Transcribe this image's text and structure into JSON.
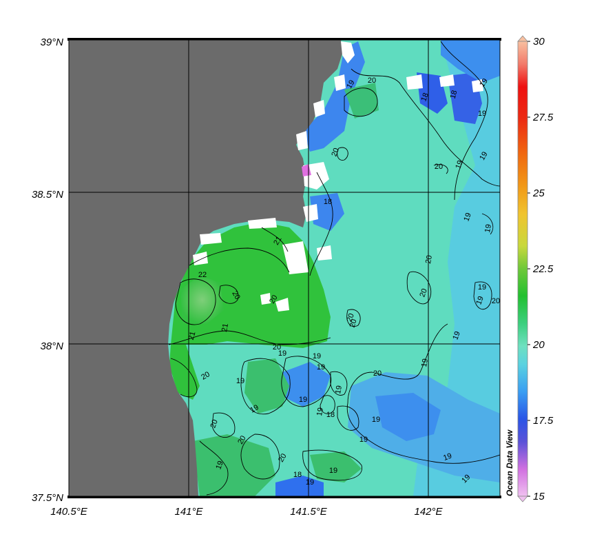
{
  "map": {
    "lat_labels": [
      "39°N",
      "38.5°N",
      "38°N",
      "37.5°N"
    ],
    "lon_labels": [
      "140.5°E",
      "141°E",
      "141.5°E",
      "142°E"
    ],
    "watermark": "Ocean Data View",
    "land_color": "#6b6b6b",
    "missing_color": "#ffffff"
  },
  "colorbar": {
    "min": 15,
    "max": 30,
    "tick_labels": [
      "30",
      "27.5",
      "25",
      "22.5",
      "20",
      "17.5",
      "15"
    ],
    "tick_values": [
      30,
      27.5,
      25,
      22.5,
      20,
      17.5,
      15
    ],
    "colors": [
      "#e7a8e7",
      "#c066d6",
      "#7060d0",
      "#2a55e6",
      "#2f8cf0",
      "#49c1e3",
      "#67dcc7",
      "#3fcf8f",
      "#2fc14a",
      "#20c02a",
      "#8fd040",
      "#e5de35",
      "#f0a820",
      "#f26b10",
      "#ee1818",
      "#f4a48a",
      "#f8c8a8"
    ]
  },
  "contour_labels": [
    "19",
    "20",
    "18",
    "19",
    "18",
    "19",
    "20",
    "18",
    "19",
    "20",
    "19",
    "20",
    "19",
    "19",
    "19",
    "21",
    "22",
    "20",
    "20",
    "20",
    "21",
    "21",
    "20",
    "20",
    "19",
    "19",
    "20",
    "19",
    "19",
    "19",
    "19",
    "18",
    "19",
    "19",
    "20",
    "19",
    "19",
    "20",
    "19",
    "20",
    "19",
    "18",
    "19",
    "19",
    "19",
    "19",
    "20",
    "20",
    "20",
    "19",
    "19"
  ]
}
